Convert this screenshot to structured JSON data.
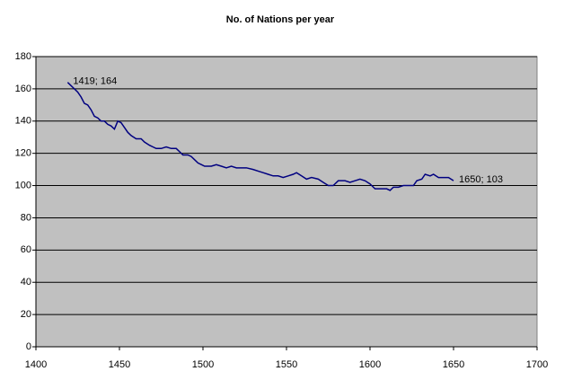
{
  "chart_data": {
    "type": "line",
    "title": "No. of Nations per year",
    "x": [
      1419,
      1421,
      1423,
      1425,
      1427,
      1429,
      1431,
      1433,
      1435,
      1437,
      1439,
      1441,
      1443,
      1445,
      1447,
      1449,
      1451,
      1453,
      1455,
      1457,
      1460,
      1463,
      1465,
      1468,
      1470,
      1472,
      1475,
      1478,
      1481,
      1484,
      1486,
      1488,
      1491,
      1493,
      1495,
      1497,
      1499,
      1501,
      1505,
      1508,
      1511,
      1514,
      1517,
      1520,
      1523,
      1526,
      1530,
      1533,
      1536,
      1539,
      1542,
      1545,
      1548,
      1551,
      1554,
      1556,
      1559,
      1562,
      1565,
      1569,
      1572,
      1575,
      1578,
      1581,
      1585,
      1588,
      1591,
      1594,
      1597,
      1600,
      1603,
      1607,
      1610,
      1612,
      1614,
      1617,
      1620,
      1623,
      1626,
      1628,
      1631,
      1633,
      1636,
      1638,
      1641,
      1644,
      1647,
      1650
    ],
    "values": [
      164,
      162,
      160,
      158,
      155,
      151,
      150,
      147,
      143,
      142,
      140,
      140,
      138,
      137,
      135,
      140,
      139,
      136,
      133,
      131,
      129,
      129,
      127,
      125,
      124,
      123,
      123,
      124,
      123,
      123,
      121,
      119,
      119,
      118,
      116,
      114,
      113,
      112,
      112,
      113,
      112,
      111,
      112,
      111,
      111,
      111,
      110,
      109,
      108,
      107,
      106,
      106,
      105,
      106,
      107,
      108,
      106,
      104,
      105,
      104,
      102,
      100,
      100,
      103,
      103,
      102,
      103,
      104,
      103,
      101,
      98,
      98,
      98,
      97,
      99,
      99,
      100,
      100,
      100,
      103,
      104,
      107,
      106,
      107,
      105,
      105,
      105,
      103
    ],
    "color": "#000080",
    "annotations": [
      {
        "text": "1419; 164",
        "x": 1419,
        "y": 164
      },
      {
        "text": "1650; 103",
        "x": 1650,
        "y": 103
      }
    ],
    "xlim": [
      1400,
      1700
    ],
    "xticks": [
      1400,
      1450,
      1500,
      1550,
      1600,
      1650,
      1700
    ],
    "ylim": [
      0,
      180
    ],
    "yticks": [
      0,
      20,
      40,
      60,
      80,
      100,
      120,
      140,
      160,
      180
    ],
    "grid": true,
    "plot_background": "#c0c0c0"
  }
}
